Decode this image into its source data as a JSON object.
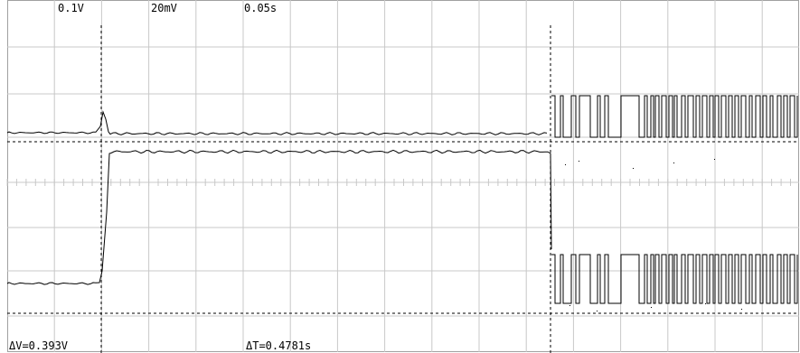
{
  "channel_scales": {
    "ch1": "0.1V",
    "ch2": "20mV",
    "timebase": "0.05s"
  },
  "cursor_readouts": {
    "delta_v": "ΔV=0.393V",
    "delta_t": "ΔT=0.4781s"
  },
  "colors": {
    "background": "#ffffff",
    "grid": "#c8c8c8",
    "trace": "#000000",
    "cursor": "#000000"
  }
}
